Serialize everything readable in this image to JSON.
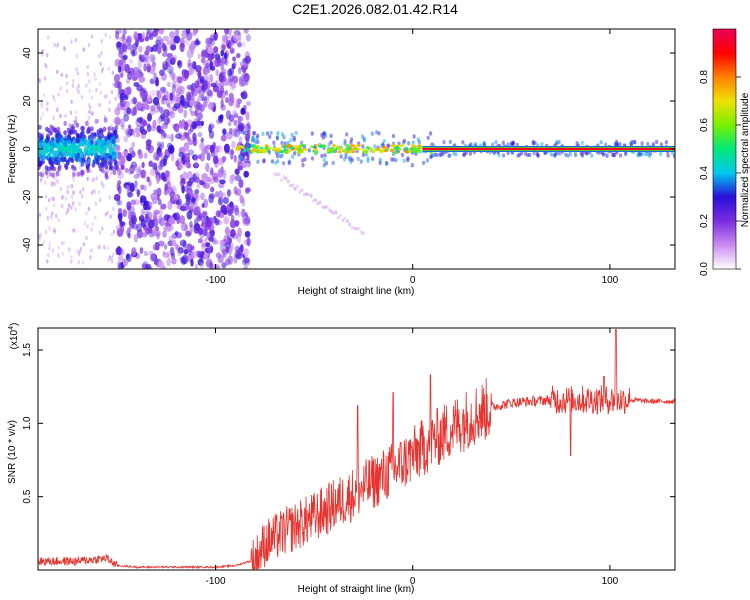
{
  "title": "C2E1.2026.082.01.42.R14",
  "colors": {
    "snr_line": "#e8322e",
    "axis": "#000000",
    "background": "#ffffff"
  },
  "chart_data": [
    {
      "type": "heatmap",
      "title": "C2E1.2026.082.01.42.R14",
      "xlabel": "Height of straight line (km)",
      "ylabel": "Frequency (Hz)",
      "xlim": [
        -190,
        133
      ],
      "ylim": [
        -50,
        50
      ],
      "x_ticks": [
        -100,
        0,
        100
      ],
      "y_ticks": [
        -40,
        -20,
        0,
        20,
        40
      ],
      "colorbar": {
        "label": "Normalized spectral amplitude",
        "range": [
          0,
          1
        ],
        "ticks": [
          "0.0",
          "0.2",
          "0.4",
          "0.6",
          "0.8"
        ],
        "colormap": [
          "#ffffff",
          "#c98cf0",
          "#7a2de0",
          "#2a0fd8",
          "#00c8f0",
          "#00e878",
          "#7af000",
          "#f0e000",
          "#ff8000",
          "#ff0000",
          "#e8005a"
        ]
      },
      "regions": [
        {
          "name": "low-snr-blob",
          "x_range": [
            -190,
            -150
          ],
          "freq_range": [
            -10,
            10
          ],
          "amplitude": 0.35
        },
        {
          "name": "noise-band",
          "x_range": [
            -150,
            -83
          ],
          "freq_range": [
            -50,
            50
          ],
          "amplitude": 0.2
        },
        {
          "name": "doppler-line",
          "x_range": [
            -90,
            133
          ],
          "freq_center": 0,
          "amplitude": 0.9
        },
        {
          "name": "faint-diagonal",
          "x_range": [
            -70,
            -25
          ],
          "freq_range": [
            -35,
            -10
          ],
          "amplitude": 0.1
        }
      ]
    },
    {
      "type": "line",
      "xlabel": "Height of straight line (km)",
      "ylabel": "SNR (10 * v/v)",
      "y_multiplier": "(x10",
      "y_multiplier_exp": "4",
      "y_multiplier_close": ")",
      "xlim": [
        -190,
        133
      ],
      "ylim": [
        0,
        1.65
      ],
      "x_ticks": [
        -100,
        0,
        100
      ],
      "y_ticks": [
        0.5,
        1.0,
        1.5
      ],
      "y_tick_labels": [
        "0.5",
        "1.0",
        "1.5"
      ],
      "series": [
        {
          "name": "SNR",
          "color": "#e8322e",
          "trend": {
            "x": [
              -190,
              -170,
              -155,
              -150,
              -140,
              -120,
              -100,
              -90,
              -80,
              -75,
              -65,
              -50,
              -40,
              -30,
              -20,
              -10,
              0,
              10,
              20,
              30,
              40,
              50,
              60,
              70,
              80,
              90,
              100,
              110,
              120,
              133
            ],
            "y": [
              0.06,
              0.06,
              0.08,
              0.03,
              0.02,
              0.02,
              0.02,
              0.03,
              0.07,
              0.18,
              0.26,
              0.36,
              0.44,
              0.52,
              0.6,
              0.68,
              0.78,
              0.88,
              0.97,
              1.05,
              1.11,
              1.14,
              1.15,
              1.16,
              1.16,
              1.16,
              1.16,
              1.16,
              1.15,
              1.15
            ]
          },
          "spikes": [
            {
              "x": 9,
              "y": 1.33
            },
            {
              "x": 80,
              "y": 0.78
            },
            {
              "x": 103,
              "y": 1.64
            },
            {
              "x": 97,
              "y": 1.32
            },
            {
              "x": -10,
              "y": 1.21
            },
            {
              "x": -28,
              "y": 1.12
            }
          ]
        }
      ]
    }
  ]
}
